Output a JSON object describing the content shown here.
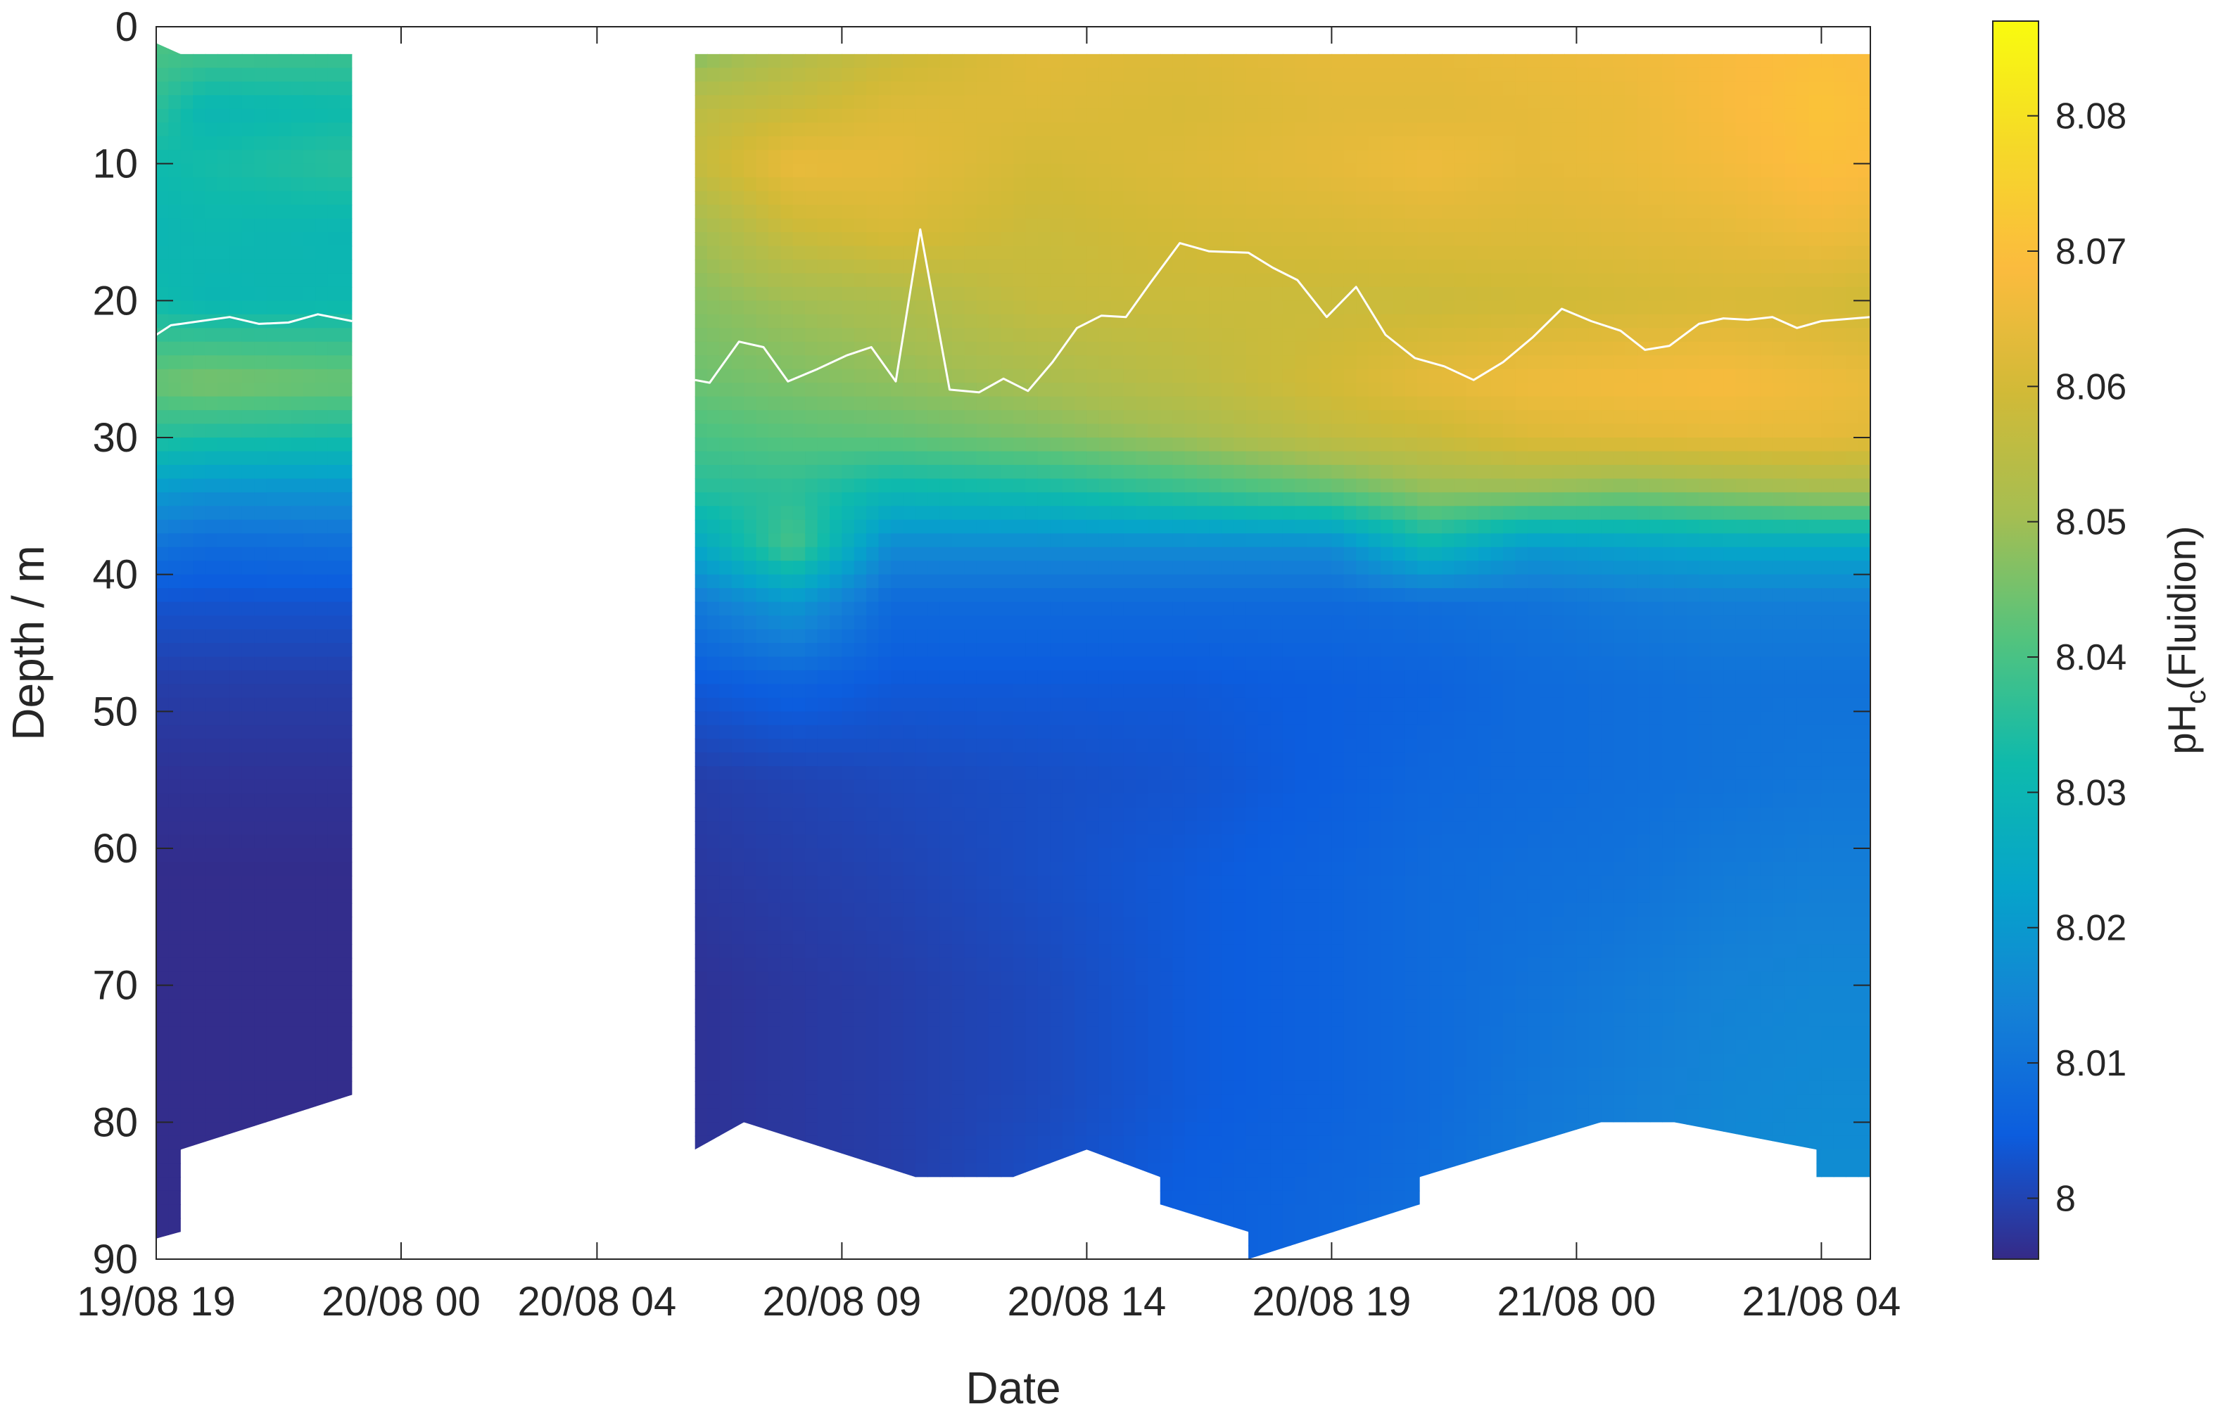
{
  "chart_data": {
    "type": "heatmap",
    "title": "",
    "xlabel": "Date",
    "ylabel": "Depth / m",
    "colorbar_label": "pH",
    "colorbar_label_sub": "c",
    "colorbar_label_suffix": "(Fluidion)",
    "x_unit": "hours since 19/08 19:00",
    "x_tick_values": [
      0,
      5,
      9,
      14,
      19,
      24,
      29,
      34
    ],
    "x_tick_labels": [
      "19/08 19",
      "20/08 00",
      "20/08 04",
      "20/08 09",
      "20/08 14",
      "20/08 19",
      "21/08 00",
      "21/08 04"
    ],
    "xlim": [
      0,
      35
    ],
    "ylim": [
      0,
      90
    ],
    "y_reversed": true,
    "y_ticks": [
      0,
      10,
      20,
      30,
      40,
      50,
      60,
      70,
      80,
      90
    ],
    "y_tick_labels": [
      "0",
      "10",
      "20",
      "30",
      "40",
      "50",
      "60",
      "70",
      "80",
      "90"
    ],
    "clim": [
      7.9955,
      8.087
    ],
    "cb_ticks": [
      8.0,
      8.01,
      8.02,
      8.03,
      8.04,
      8.05,
      8.06,
      8.07,
      8.08
    ],
    "cb_tick_labels": [
      "8",
      "8.01",
      "8.02",
      "8.03",
      "8.04",
      "8.05",
      "8.06",
      "8.07",
      "8.08"
    ],
    "colormap": "parula",
    "grid": false,
    "data_gap_hours": [
      4.0,
      11.0
    ],
    "profiles": {
      "depth": [
        2,
        6,
        10,
        15,
        20,
        26,
        30,
        34,
        38,
        42,
        48,
        55,
        62,
        70,
        78,
        86
      ],
      "hours": [
        0,
        1,
        4,
        11,
        13,
        15,
        18,
        21,
        24,
        26,
        28,
        30,
        32,
        34,
        35
      ],
      "ph": [
        [
          8.04,
          8.036,
          8.032,
          8.03,
          8.032,
          8.044,
          8.035,
          8.02,
          8.01,
          8.003,
          7.999,
          7.997,
          7.996,
          7.996,
          7.996,
          7.996
        ],
        [
          8.039,
          8.03,
          8.033,
          8.031,
          8.03,
          8.046,
          8.034,
          8.018,
          8.008,
          8.003,
          7.999,
          7.997,
          7.996,
          7.996,
          7.996,
          7.996
        ],
        [
          8.038,
          8.032,
          8.036,
          8.03,
          8.031,
          8.044,
          8.033,
          8.018,
          8.009,
          8.003,
          7.999,
          7.997,
          7.996,
          7.996,
          7.996,
          7.996
        ],
        [
          8.047,
          8.055,
          8.057,
          8.05,
          8.047,
          8.044,
          8.04,
          8.035,
          8.024,
          8.012,
          8.004,
          7.999,
          7.998,
          7.997,
          7.997,
          7.997
        ],
        [
          8.053,
          8.058,
          8.065,
          8.058,
          8.05,
          8.046,
          8.042,
          8.036,
          8.04,
          8.02,
          8.006,
          8.0,
          7.999,
          7.998,
          7.998,
          7.998
        ],
        [
          8.058,
          8.062,
          8.064,
          8.061,
          8.052,
          8.048,
          8.043,
          8.03,
          8.016,
          8.008,
          8.004,
          8.001,
          8.0,
          7.999,
          7.999,
          7.999
        ],
        [
          8.063,
          8.062,
          8.06,
          8.058,
          8.057,
          8.051,
          8.046,
          8.032,
          8.016,
          8.008,
          8.004,
          8.002,
          8.002,
          8.001,
          8.001,
          8.002
        ],
        [
          8.062,
          8.061,
          8.062,
          8.06,
          8.058,
          8.055,
          8.05,
          8.037,
          8.016,
          8.008,
          8.004,
          8.003,
          8.004,
          8.004,
          8.004,
          8.005
        ],
        [
          8.064,
          8.063,
          8.064,
          8.061,
          8.058,
          8.06,
          8.056,
          8.042,
          8.016,
          8.008,
          8.005,
          8.005,
          8.006,
          8.006,
          8.006,
          8.007
        ],
        [
          8.064,
          8.063,
          8.066,
          8.062,
          8.058,
          8.064,
          8.058,
          8.048,
          8.03,
          8.009,
          8.006,
          8.007,
          8.008,
          8.008,
          8.008,
          8.009
        ],
        [
          8.065,
          8.064,
          8.064,
          8.062,
          8.059,
          8.066,
          8.062,
          8.048,
          8.02,
          8.01,
          8.008,
          8.008,
          8.009,
          8.01,
          8.011,
          8.012
        ],
        [
          8.066,
          8.065,
          8.065,
          8.063,
          8.06,
          8.067,
          8.063,
          8.046,
          8.022,
          8.012,
          8.009,
          8.009,
          8.01,
          8.012,
          8.013,
          8.014
        ],
        [
          8.068,
          8.068,
          8.067,
          8.064,
          8.061,
          8.068,
          8.064,
          8.048,
          8.024,
          8.013,
          8.01,
          8.01,
          8.012,
          8.014,
          8.015,
          8.016
        ],
        [
          8.07,
          8.071,
          8.07,
          8.066,
          8.06,
          8.066,
          8.064,
          8.05,
          8.024,
          8.013,
          8.01,
          8.011,
          8.013,
          8.015,
          8.016,
          8.017
        ],
        [
          8.069,
          8.07,
          8.069,
          8.065,
          8.059,
          8.065,
          8.063,
          8.05,
          8.024,
          8.013,
          8.01,
          8.011,
          8.013,
          8.015,
          8.016,
          8.017
        ]
      ]
    },
    "bottom_depth": [
      {
        "t": 0.0,
        "d": 88.5
      },
      {
        "t": 0.5,
        "d": 88
      },
      {
        "t": 0.5,
        "d": 82
      },
      {
        "t": 4.0,
        "d": 78
      },
      {
        "t": 11.0,
        "d": 82
      },
      {
        "t": 12.0,
        "d": 80
      },
      {
        "t": 15.5,
        "d": 84
      },
      {
        "t": 17.5,
        "d": 84
      },
      {
        "t": 19.0,
        "d": 82
      },
      {
        "t": 20.5,
        "d": 84
      },
      {
        "t": 20.5,
        "d": 86
      },
      {
        "t": 22.3,
        "d": 88
      },
      {
        "t": 22.3,
        "d": 90
      },
      {
        "t": 25.8,
        "d": 86
      },
      {
        "t": 25.8,
        "d": 84
      },
      {
        "t": 29.5,
        "d": 80
      },
      {
        "t": 31.0,
        "d": 80
      },
      {
        "t": 33.9,
        "d": 82
      },
      {
        "t": 33.9,
        "d": 84
      },
      {
        "t": 35.0,
        "d": 84
      }
    ],
    "top_depth": [
      {
        "t": 0.0,
        "d": 1.2
      },
      {
        "t": 0.5,
        "d": 2
      },
      {
        "t": 4.0,
        "d": 2
      },
      {
        "t": 11.0,
        "d": 2
      },
      {
        "t": 35.0,
        "d": 2
      }
    ],
    "line_series": {
      "color": "#ffffff",
      "segments": [
        [
          [
            0.0,
            22.5
          ],
          [
            0.3,
            21.8
          ],
          [
            0.9,
            21.5
          ],
          [
            1.5,
            21.2
          ],
          [
            2.1,
            21.7
          ],
          [
            2.7,
            21.6
          ],
          [
            3.3,
            21.0
          ],
          [
            4.0,
            21.5
          ]
        ],
        [
          [
            11.0,
            25.8
          ],
          [
            11.3,
            26.0
          ],
          [
            11.9,
            23.0
          ],
          [
            12.4,
            23.4
          ],
          [
            12.9,
            25.9
          ],
          [
            13.5,
            25.0
          ],
          [
            14.1,
            24.0
          ],
          [
            14.6,
            23.4
          ],
          [
            15.1,
            25.9
          ],
          [
            15.6,
            14.8
          ],
          [
            16.2,
            26.5
          ],
          [
            16.8,
            26.7
          ],
          [
            17.3,
            25.7
          ],
          [
            17.8,
            26.6
          ],
          [
            18.3,
            24.5
          ],
          [
            18.8,
            22.0
          ],
          [
            19.3,
            21.1
          ],
          [
            19.8,
            21.2
          ],
          [
            20.3,
            18.7
          ],
          [
            20.9,
            15.8
          ],
          [
            21.5,
            16.4
          ],
          [
            22.3,
            16.5
          ],
          [
            22.8,
            17.6
          ],
          [
            23.3,
            18.5
          ],
          [
            23.9,
            21.2
          ],
          [
            24.5,
            19.0
          ],
          [
            25.1,
            22.5
          ],
          [
            25.7,
            24.2
          ],
          [
            26.3,
            24.8
          ],
          [
            26.9,
            25.8
          ],
          [
            27.5,
            24.5
          ],
          [
            28.1,
            22.7
          ],
          [
            28.7,
            20.6
          ],
          [
            29.3,
            21.5
          ],
          [
            29.9,
            22.2
          ],
          [
            30.4,
            23.6
          ],
          [
            30.9,
            23.3
          ],
          [
            31.5,
            21.7
          ],
          [
            32.0,
            21.3
          ],
          [
            32.5,
            21.4
          ],
          [
            33.0,
            21.2
          ],
          [
            33.5,
            22.0
          ],
          [
            34.0,
            21.5
          ],
          [
            35.0,
            21.2
          ]
        ]
      ]
    }
  }
}
